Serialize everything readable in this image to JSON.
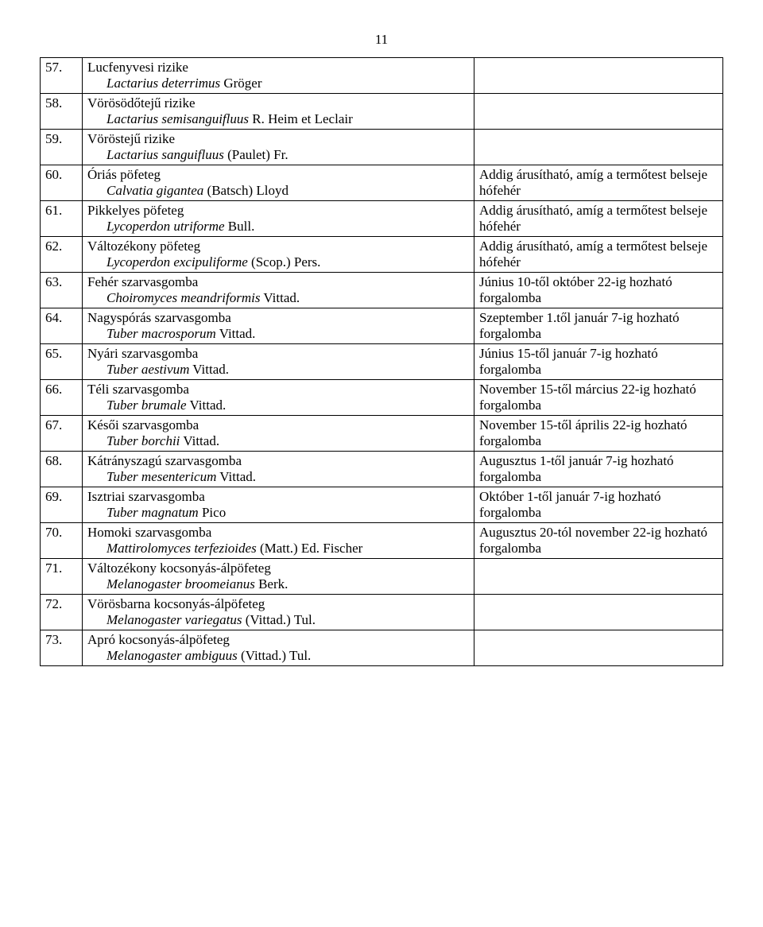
{
  "pageNumber": "11",
  "rows": [
    {
      "n": "57.",
      "common": "Lucfenyvesi rizike",
      "sci": "Lactarius deterrimus",
      "auth": " Gröger",
      "note": ""
    },
    {
      "n": "58.",
      "common": "Vörösödőtejű rizike",
      "sci": "Lactarius semisanguifluus",
      "auth": " R. Heim et Leclair",
      "note": ""
    },
    {
      "n": "59.",
      "common": "Vöröstejű rizike",
      "sci": "Lactarius sanguifluus",
      "auth": " (Paulet) Fr.",
      "note": ""
    },
    {
      "n": "60.",
      "common": "Óriás pöfeteg",
      "sci": "Calvatia gigantea",
      "auth": " (Batsch) Lloyd",
      "note": "Addig árusítható, amíg a termőtest belseje hófehér"
    },
    {
      "n": "61.",
      "common": "Pikkelyes pöfeteg",
      "sci": "Lycoperdon utriforme",
      "auth": " Bull.",
      "note": "Addig árusítható, amíg a termőtest belseje hófehér"
    },
    {
      "n": "62.",
      "common": "Változékony pöfeteg",
      "sci": "Lycoperdon excipuliforme",
      "auth": " (Scop.) Pers.",
      "note": "Addig árusítható, amíg a termőtest belseje hófehér"
    },
    {
      "n": "63.",
      "common": "Fehér szarvasgomba",
      "sci": "Choiromyces meandriformis",
      "auth": " Vittad.",
      "note": "Június 10-től október 22-ig hozható forgalomba"
    },
    {
      "n": "64.",
      "common": "Nagyspórás szarvasgomba",
      "sci": "Tuber macrosporum",
      "auth": " Vittad.",
      "note": "Szeptember 1.től január 7-ig hozható forgalomba"
    },
    {
      "n": "65.",
      "common": "Nyári szarvasgomba",
      "sci": "Tuber aestivum",
      "auth": " Vittad.",
      "note": "Június 15-től január 7-ig hozható forgalomba"
    },
    {
      "n": "66.",
      "common": "Téli szarvasgomba",
      "sci": "Tuber brumale",
      "auth": " Vittad.",
      "note": "November 15-től március 22-ig hozható forgalomba"
    },
    {
      "n": "67.",
      "common": "Késői szarvasgomba",
      "sci": "Tuber borchii",
      "auth": " Vittad.",
      "note": "November 15-től április 22-ig hozható forgalomba"
    },
    {
      "n": "68.",
      "common": "Kátrányszagú szarvasgomba",
      "sci": "Tuber mesentericum",
      "auth": " Vittad.",
      "note": "Augusztus 1-től január 7-ig hozható forgalomba"
    },
    {
      "n": "69.",
      "common": "Isztriai szarvasgomba",
      "sci": "Tuber magnatum",
      "auth": " Pico",
      "note": "Október 1-től január 7-ig hozható forgalomba"
    },
    {
      "n": "70.",
      "common": "Homoki szarvasgomba",
      "sci": "Mattirolomyces terfezioides",
      "auth": " (Matt.) Ed. Fischer",
      "note": "Augusztus 20-tól november 22-ig hozható forgalomba"
    },
    {
      "n": "71.",
      "common": "Változékony kocsonyás-álpöfeteg",
      "sci": "Melanogaster broomeianus",
      "auth": " Berk.",
      "note": ""
    },
    {
      "n": "72.",
      "common": "Vörösbarna kocsonyás-álpöfeteg",
      "sci": "Melanogaster variegatus",
      "auth": " (Vittad.) Tul.",
      "note": ""
    },
    {
      "n": "73.",
      "common": "Apró kocsonyás-álpöfeteg",
      "sci": "Melanogaster ambiguus",
      "auth": " (Vittad.) Tul.",
      "note": ""
    }
  ]
}
